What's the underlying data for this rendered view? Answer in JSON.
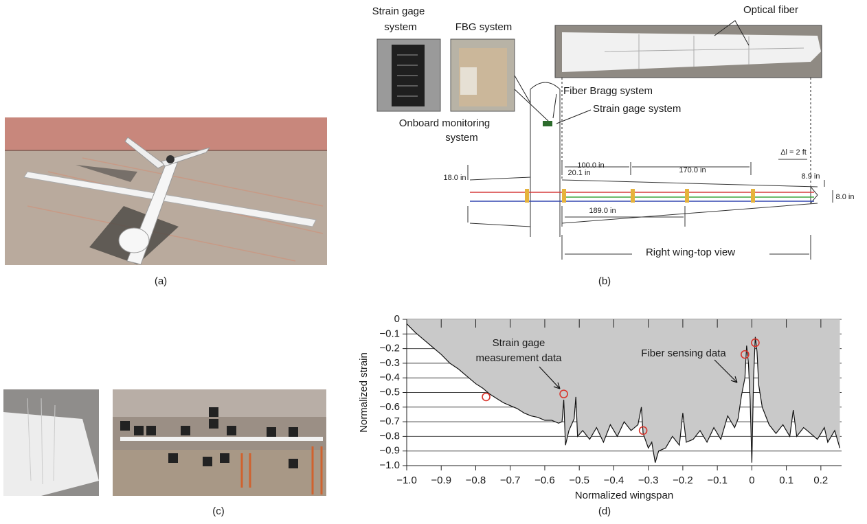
{
  "figure": {
    "panel_labels": [
      "(a)",
      "(b)",
      "(c)",
      "(d)"
    ],
    "diagram_labels": [
      "Strain gage",
      "system",
      "FBG system",
      "Optical fiber",
      "Fiber Bragg system",
      "Strain gage system",
      "Onboard monitoring",
      "system",
      "100.0 in",
      "20.1 in",
      "170.0 in",
      "Δl = 2 ft",
      "8.9 in",
      "18.0 in",
      "8.0 in",
      "189.0 in",
      "Right wing-top view"
    ]
  },
  "chart_data": {
    "type": "line",
    "xlabel": "Normalized wingspan",
    "ylabel": "Normalized strain",
    "annotations": [
      "Strain gage",
      "measurement data",
      "Fiber sensing data"
    ],
    "x": [
      -1.0,
      -0.975,
      -0.95,
      -0.925,
      -0.9,
      -0.875,
      -0.85,
      -0.825,
      -0.8,
      -0.78,
      -0.76,
      -0.74,
      -0.72,
      -0.7,
      -0.68,
      -0.66,
      -0.64,
      -0.62,
      -0.6,
      -0.58,
      -0.56,
      -0.55,
      -0.545,
      -0.54,
      -0.53,
      -0.515,
      -0.51,
      -0.505,
      -0.49,
      -0.47,
      -0.45,
      -0.43,
      -0.41,
      -0.39,
      -0.37,
      -0.35,
      -0.33,
      -0.32,
      -0.315,
      -0.3,
      -0.29,
      -0.28,
      -0.27,
      -0.25,
      -0.23,
      -0.21,
      -0.2,
      -0.19,
      -0.17,
      -0.15,
      -0.13,
      -0.11,
      -0.09,
      -0.07,
      -0.05,
      -0.04,
      -0.03,
      -0.02,
      -0.015,
      -0.01,
      -0.005,
      0.0,
      0.005,
      0.01,
      0.015,
      0.02,
      0.03,
      0.05,
      0.07,
      0.09,
      0.11,
      0.12,
      0.13,
      0.15,
      0.17,
      0.19,
      0.21,
      0.22,
      0.24,
      0.25,
      0.255
    ],
    "values": [
      -0.03,
      -0.09,
      -0.14,
      -0.19,
      -0.24,
      -0.3,
      -0.34,
      -0.39,
      -0.44,
      -0.47,
      -0.51,
      -0.54,
      -0.57,
      -0.59,
      -0.61,
      -0.64,
      -0.66,
      -0.67,
      -0.69,
      -0.69,
      -0.71,
      -0.7,
      -0.55,
      -0.86,
      -0.76,
      -0.68,
      -0.53,
      -0.8,
      -0.76,
      -0.82,
      -0.74,
      -0.84,
      -0.72,
      -0.8,
      -0.7,
      -0.76,
      -0.72,
      -0.6,
      -0.78,
      -0.88,
      -0.84,
      -0.98,
      -0.9,
      -0.88,
      -0.8,
      -0.86,
      -0.64,
      -0.84,
      -0.82,
      -0.76,
      -0.84,
      -0.74,
      -0.82,
      -0.66,
      -0.74,
      -0.68,
      -0.52,
      -0.4,
      -0.18,
      -0.3,
      -0.55,
      -0.98,
      -0.4,
      -0.12,
      -0.22,
      -0.45,
      -0.6,
      -0.72,
      -0.78,
      -0.72,
      -0.8,
      -0.62,
      -0.8,
      -0.74,
      -0.78,
      -0.82,
      -0.74,
      -0.84,
      -0.76,
      -0.84,
      -0.88
    ],
    "color": "#111111",
    "fill_color": "#c9c9c9",
    "markers": {
      "x": [
        -0.77,
        -0.545,
        -0.315,
        -0.02,
        0.01
      ],
      "values": [
        -0.53,
        -0.51,
        -0.76,
        -0.24,
        -0.16
      ],
      "color": "#d9342b"
    },
    "xlim": [
      -1.0,
      0.26
    ],
    "ylim": [
      -1.0,
      0
    ],
    "xticks": [
      {
        "value": -1.0,
        "label": "−1.0"
      },
      {
        "value": -0.9,
        "label": "−0.9"
      },
      {
        "value": -0.8,
        "label": "−0.8"
      },
      {
        "value": -0.7,
        "label": "−0.7"
      },
      {
        "value": -0.6,
        "label": "−0.6"
      },
      {
        "value": -0.5,
        "label": "−0.5"
      },
      {
        "value": -0.4,
        "label": "−0.4"
      },
      {
        "value": -0.3,
        "label": "−0.3"
      },
      {
        "value": -0.2,
        "label": "−0.2"
      },
      {
        "value": -0.1,
        "label": "−0.1"
      },
      0,
      0.1,
      0.2
    ],
    "yticks": [
      0,
      {
        "value": -0.1,
        "label": "−0.1"
      },
      {
        "value": -0.2,
        "label": "−0.2"
      },
      {
        "value": -0.3,
        "label": "−0.3"
      },
      {
        "value": -0.4,
        "label": "−0.4"
      },
      {
        "value": -0.5,
        "label": "−0.5"
      },
      {
        "value": -0.6,
        "label": "−0.6"
      },
      {
        "value": -0.7,
        "label": "−0.7"
      },
      {
        "value": -0.8,
        "label": "−0.8"
      },
      {
        "value": -0.9,
        "label": "−0.9"
      },
      {
        "value": -1.0,
        "label": "−1.0"
      }
    ],
    "grid": true
  }
}
